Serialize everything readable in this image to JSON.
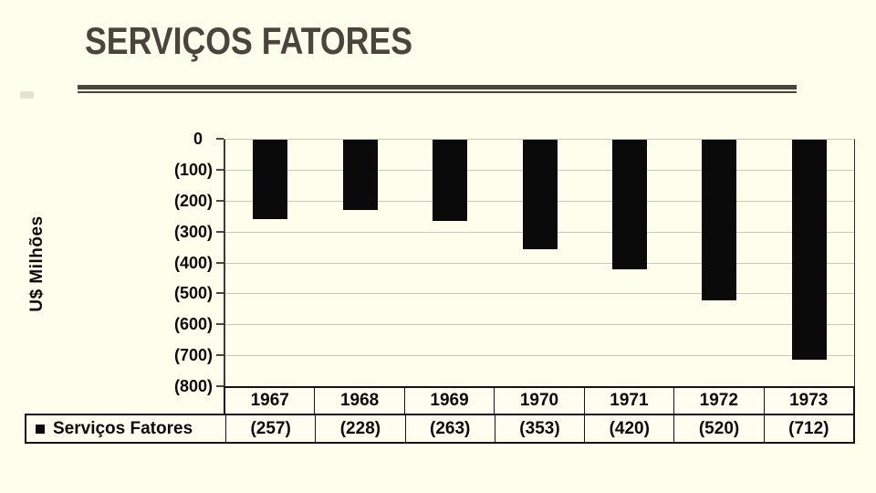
{
  "slide": {
    "title": "SERVIÇOS FATORES",
    "colors": {
      "background": "#FEFEEC",
      "title": "#4A443C",
      "rule": "#4A443C",
      "bar": "#0A0A0A",
      "gridline": "#C9C9BD",
      "table_border": "#141414",
      "text": "#0A0A0A"
    }
  },
  "chart_data": {
    "type": "bar",
    "title": "SERVIÇOS FATORES",
    "xlabel": "",
    "ylabel": "U$ Milhões",
    "categories": [
      "1967",
      "1968",
      "1969",
      "1970",
      "1971",
      "1972",
      "1973"
    ],
    "series": [
      {
        "name": "Serviços Fatores",
        "values": [
          -257,
          -228,
          -263,
          -353,
          -420,
          -520,
          -712
        ]
      }
    ],
    "value_labels": [
      "(257)",
      "(228)",
      "(263)",
      "(353)",
      "(420)",
      "(520)",
      "(712)"
    ],
    "y_tick_labels": [
      "0",
      "(100)",
      "(200)",
      "(300)",
      "(400)",
      "(500)",
      "(600)",
      "(700)",
      "(800)"
    ],
    "y_tick_values": [
      0,
      -100,
      -200,
      -300,
      -400,
      -500,
      -600,
      -700,
      -800
    ],
    "ylim": [
      -800,
      0
    ],
    "grid": true,
    "legend": {
      "marker": "■",
      "label": "Serviços Fatores",
      "position": "bottom-table"
    }
  }
}
